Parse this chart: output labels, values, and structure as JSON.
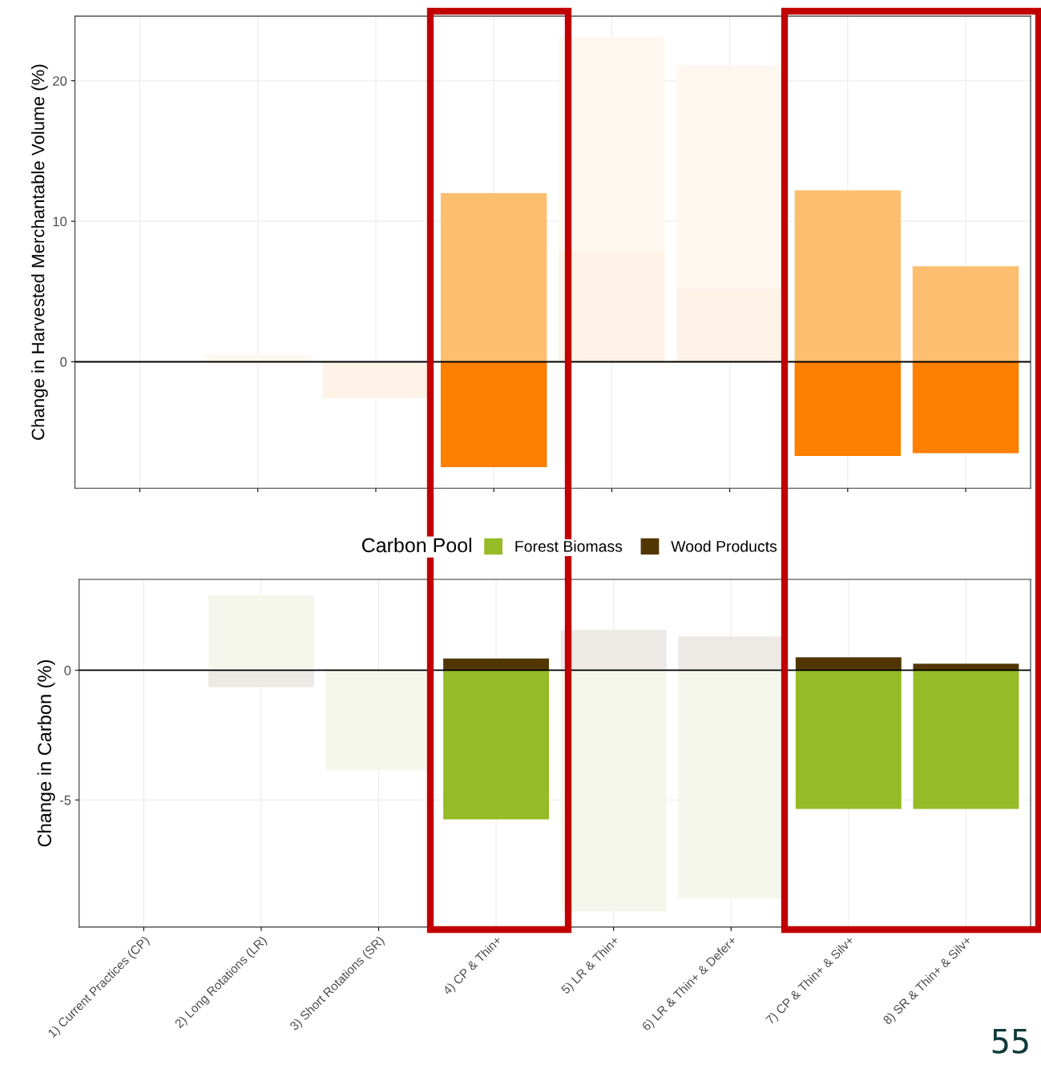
{
  "chart_data": [
    {
      "type": "bar",
      "stacked": true,
      "ylabel": "Change in Harvested Merchantable Volume (%)",
      "categories": [
        null,
        null,
        null,
        null,
        null,
        null,
        null,
        null
      ],
      "series": [
        {
          "color": "#ff7f00",
          "colors": [
            "#fff2e6",
            "#fff2e6",
            "#fff2e6",
            "#ff7f00",
            "#fff2e6",
            "#fff2e6",
            "#ff7f00",
            "#ff7f00"
          ],
          "values": [
            0,
            0,
            -2.6,
            -7.5,
            7.9,
            5.2,
            -6.7,
            -6.5
          ]
        },
        {
          "color": "#fdbf6f",
          "colors": [
            "#fff8f0",
            "#fff8f0",
            "#fff8f0",
            "#fdbf6f",
            "#fff8f0",
            "#fff8f0",
            "#fdbf6f",
            "#fdbf6f"
          ],
          "values": [
            0,
            0.5,
            0,
            12,
            15.2,
            15.9,
            12.2,
            6.8
          ]
        }
      ],
      "ylim": [
        -9,
        24.6
      ],
      "yticks": [
        0,
        10,
        20
      ],
      "grid": true,
      "tick_labels": "y",
      "ref_lines": [
        {
          "axis": "y",
          "value": 0,
          "color": "#000000"
        }
      ]
    },
    {
      "type": "bar",
      "stacked": true,
      "ylabel": "Change in Carbon (%)",
      "legend_title": "Carbon Pool",
      "legend": "top",
      "categories": [
        "1) Current Practices (CP)",
        "2) Long Rotations (LR)",
        "3) Short Rotations (SR)",
        "4) CP & Thin+",
        "5) LR & Thin+",
        "6) LR & Thin+ & Defer+",
        "7) CP & Thin+ & Silv+",
        "8) SR & Thin+ & Silv+"
      ],
      "series": [
        {
          "name": "Forest Biomass",
          "color": "#95bc26",
          "colors": [
            "#f5f7ec",
            "#f5f7ec",
            "#f5f7ec",
            "#95bc26",
            "#f5f7ec",
            "#f5f7ec",
            "#95bc26",
            "#95bc26"
          ],
          "values": [
            0,
            2.9,
            -3.85,
            -5.75,
            -9.3,
            -8.8,
            -5.35,
            -5.35
          ]
        },
        {
          "name": "Wood Products",
          "color": "#523600",
          "colors": [
            "#ede9e5",
            "#ede9e5",
            "#ede9e5",
            "#523600",
            "#ede9e5",
            "#ede9e5",
            "#523600",
            "#523600"
          ],
          "values": [
            0,
            -0.65,
            0,
            0.45,
            1.55,
            1.3,
            0.5,
            0.25
          ]
        }
      ],
      "ylim": [
        -9.9,
        3.5
      ],
      "yticks": [
        -5,
        0
      ],
      "grid": true,
      "ref_lines": [
        {
          "axis": "y",
          "value": 0,
          "color": "#000000"
        }
      ],
      "annotations": [
        "55"
      ]
    }
  ]
}
